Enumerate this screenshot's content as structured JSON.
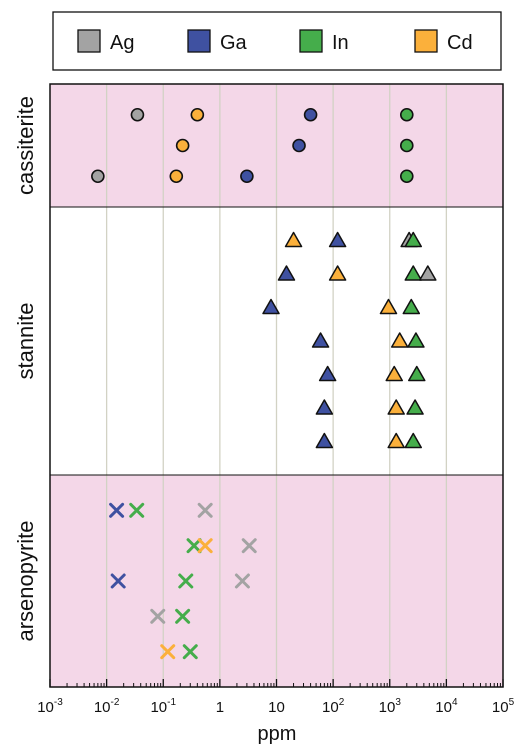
{
  "chart_data": {
    "type": "scatter",
    "xlabel": "ppm",
    "xscale": "log",
    "xlim": [
      0.001,
      100000
    ],
    "x_tick_labels": [
      {
        "base": "10",
        "exp": "-3"
      },
      {
        "base": "10",
        "exp": "-2"
      },
      {
        "base": "10",
        "exp": "-1"
      },
      {
        "base": "1",
        "exp": ""
      },
      {
        "base": "10",
        "exp": ""
      },
      {
        "base": "10",
        "exp": "2"
      },
      {
        "base": "10",
        "exp": "3"
      },
      {
        "base": "10",
        "exp": "4"
      },
      {
        "base": "10",
        "exp": "5"
      }
    ],
    "grid": "vertical at decades",
    "legend_position": "top",
    "legend": [
      {
        "name": "Ag",
        "color": "#a3a3a3"
      },
      {
        "name": "Ga",
        "color": "#3f51a1"
      },
      {
        "name": "In",
        "color": "#45ad4b"
      },
      {
        "name": "Cd",
        "color": "#fbb03b"
      }
    ],
    "band_colors": {
      "pink": "#f4d7e8",
      "white": "#ffffff"
    },
    "groups": [
      {
        "name": "cassiterite",
        "marker": "circle",
        "shaded": true,
        "rows": [
          {
            "points": [
              {
                "el": "Ag",
                "x": 0.035
              },
              {
                "el": "Cd",
                "x": 0.4
              },
              {
                "el": "Ga",
                "x": 40
              },
              {
                "el": "In",
                "x": 2000
              }
            ]
          },
          {
            "points": [
              {
                "el": "Cd",
                "x": 0.22
              },
              {
                "el": "Ga",
                "x": 25
              },
              {
                "el": "In",
                "x": 2000
              }
            ]
          },
          {
            "points": [
              {
                "el": "Ag",
                "x": 0.007
              },
              {
                "el": "Cd",
                "x": 0.17
              },
              {
                "el": "Ga",
                "x": 3
              },
              {
                "el": "In",
                "x": 2000
              }
            ]
          }
        ]
      },
      {
        "name": "stannite",
        "marker": "triangle",
        "shaded": false,
        "rows": [
          {
            "points": [
              {
                "el": "Cd",
                "x": 20
              },
              {
                "el": "Ga",
                "x": 120
              },
              {
                "el": "Ag",
                "x": 2200
              },
              {
                "el": "In",
                "x": 2600
              }
            ]
          },
          {
            "points": [
              {
                "el": "Ga",
                "x": 15
              },
              {
                "el": "Cd",
                "x": 120
              },
              {
                "el": "In",
                "x": 2600
              },
              {
                "el": "Ag",
                "x": 4700
              }
            ]
          },
          {
            "points": [
              {
                "el": "Ga",
                "x": 8
              },
              {
                "el": "Cd",
                "x": 950
              },
              {
                "el": "In",
                "x": 2400
              }
            ]
          },
          {
            "points": [
              {
                "el": "Ga",
                "x": 60
              },
              {
                "el": "Cd",
                "x": 1500
              },
              {
                "el": "In",
                "x": 2900
              }
            ]
          },
          {
            "points": [
              {
                "el": "Ga",
                "x": 80
              },
              {
                "el": "Cd",
                "x": 1200
              },
              {
                "el": "In",
                "x": 3000
              }
            ]
          },
          {
            "points": [
              {
                "el": "Ga",
                "x": 70
              },
              {
                "el": "Cd",
                "x": 1300
              },
              {
                "el": "In",
                "x": 2800
              }
            ]
          },
          {
            "points": [
              {
                "el": "Ga",
                "x": 70
              },
              {
                "el": "Cd",
                "x": 1300
              },
              {
                "el": "In",
                "x": 2600
              }
            ]
          }
        ]
      },
      {
        "name": "arsenopyrite",
        "marker": "x",
        "shaded": true,
        "rows": [
          {
            "points": [
              {
                "el": "Ga",
                "x": 0.015
              },
              {
                "el": "In",
                "x": 0.034
              },
              {
                "el": "Ag",
                "x": 0.55
              }
            ]
          },
          {
            "points": [
              {
                "el": "In",
                "x": 0.35
              },
              {
                "el": "Cd",
                "x": 0.55
              },
              {
                "el": "Ag",
                "x": 3.3
              }
            ]
          },
          {
            "points": [
              {
                "el": "Ga",
                "x": 0.016
              },
              {
                "el": "In",
                "x": 0.25
              },
              {
                "el": "Ag",
                "x": 2.5
              }
            ]
          },
          {
            "points": [
              {
                "el": "Ag",
                "x": 0.08
              },
              {
                "el": "In",
                "x": 0.22
              }
            ]
          },
          {
            "points": [
              {
                "el": "Cd",
                "x": 0.12
              },
              {
                "el": "In",
                "x": 0.3
              }
            ]
          }
        ]
      }
    ]
  }
}
